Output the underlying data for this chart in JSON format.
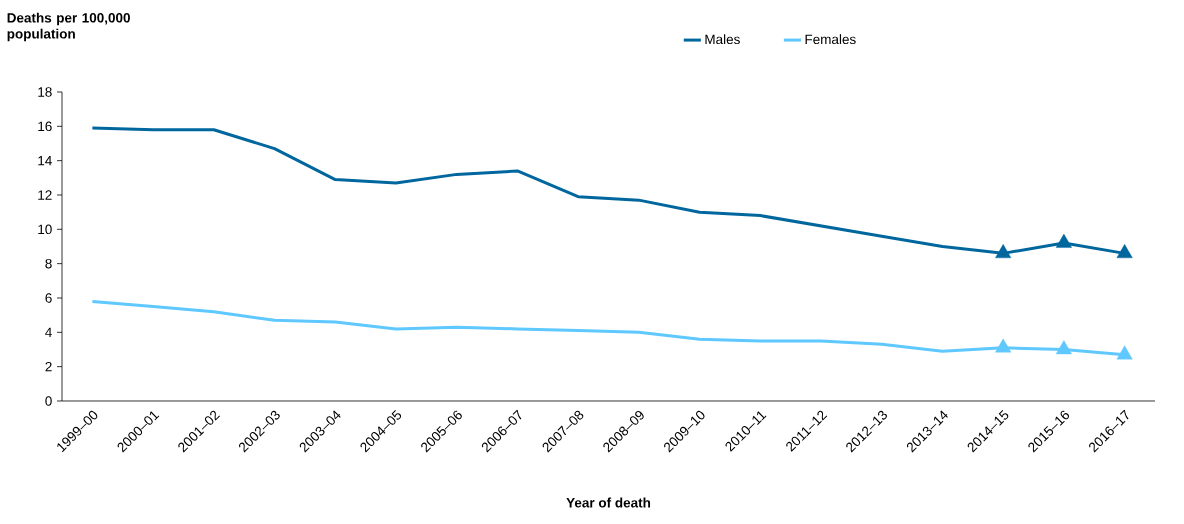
{
  "chart_data": {
    "type": "line",
    "ylabel": "Deaths per 100,000 population",
    "xlabel": "Year of death",
    "categories": [
      "1999–00",
      "2000–01",
      "2001–02",
      "2002–03",
      "2003–04",
      "2004–05",
      "2005–06",
      "2006–07",
      "2007–08",
      "2008–09",
      "2009–10",
      "2010–11",
      "2011–12",
      "2012–13",
      "2013–14",
      "2014–15",
      "2015–16",
      "2016–17"
    ],
    "series": [
      {
        "name": "Males",
        "color": "#00679e",
        "marker": "none",
        "values": [
          15.9,
          15.8,
          15.8,
          14.7,
          12.9,
          12.7,
          13.2,
          13.4,
          11.9,
          11.7,
          11.0,
          10.8,
          10.2,
          9.6,
          9.0,
          8.6,
          9.2,
          8.6
        ]
      },
      {
        "name": "Females",
        "color": "#5fc8ff",
        "marker": "none",
        "values": [
          5.8,
          5.5,
          5.2,
          4.7,
          4.6,
          4.2,
          4.3,
          4.2,
          4.1,
          4.0,
          3.6,
          3.5,
          3.5,
          3.3,
          2.9,
          3.1,
          3.0,
          2.7
        ]
      },
      {
        "type": "scatter",
        "color": "#00679e",
        "marker": "triangle",
        "values": [
          null,
          null,
          null,
          null,
          null,
          null,
          null,
          null,
          null,
          null,
          null,
          null,
          null,
          null,
          null,
          8.6,
          9.2,
          8.6
        ]
      },
      {
        "type": "scatter",
        "color": "#5fc8ff",
        "marker": "triangle",
        "values": [
          null,
          null,
          null,
          null,
          null,
          null,
          null,
          null,
          null,
          null,
          null,
          null,
          null,
          null,
          null,
          3.1,
          3.0,
          2.7
        ]
      }
    ],
    "ylim": [
      0,
      18
    ],
    "yticks": [
      0,
      2,
      4,
      6,
      8,
      10,
      12,
      14,
      16,
      18
    ],
    "legend": "top"
  }
}
